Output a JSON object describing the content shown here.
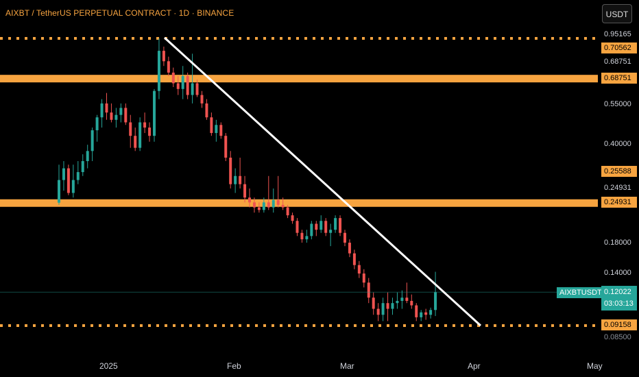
{
  "header": {
    "title": "AIXBT / TetherUS PERPETUAL CONTRACT · 1D · BINANCE",
    "currency_button": "USDT"
  },
  "price_axis": [
    {
      "value": "0.95165",
      "style": "plain"
    },
    {
      "value": "0.70562",
      "style": "orange"
    },
    {
      "value": "0.68751",
      "style": "plain"
    },
    {
      "value": "0.68751",
      "style": "orange"
    },
    {
      "value": "0.55000",
      "style": "plain"
    },
    {
      "value": "0.40000",
      "style": "plain"
    },
    {
      "value": "0.25588",
      "style": "orange"
    },
    {
      "value": "0.24931",
      "style": "plain"
    },
    {
      "value": "0.24931",
      "style": "orange"
    },
    {
      "value": "0.18000",
      "style": "plain"
    },
    {
      "value": "0.14000",
      "style": "plain"
    },
    {
      "value": "0.09158",
      "style": "orange"
    },
    {
      "value": "0.08500",
      "style": "dim"
    }
  ],
  "time_axis": [
    "2025",
    "Feb",
    "Mar",
    "Apr",
    "May"
  ],
  "current": {
    "symbol": "AIXBTUSDT.P",
    "price": "0.12022",
    "countdown": "03:03:13"
  },
  "colors": {
    "background": "#000000",
    "bull": "#26a69a",
    "bear": "#ef5350",
    "level": "#f7a440",
    "trendline": "#ffffff"
  },
  "chart_data": {
    "type": "candlestick",
    "scale": "log",
    "interval": "1D",
    "levels_solid": [
      0.68751,
      0.24931
    ],
    "levels_dotted": [
      0.95165,
      0.09158
    ],
    "trendline": {
      "from_price": 0.95165,
      "to_price": 0.09158
    },
    "candles": [
      [
        0.24931,
        0.245,
        0.34,
        0.3
      ],
      [
        0.3,
        0.275,
        0.35,
        0.33
      ],
      [
        0.33,
        0.265,
        0.34,
        0.27
      ],
      [
        0.27,
        0.26,
        0.34,
        0.3
      ],
      [
        0.3,
        0.29,
        0.35,
        0.32
      ],
      [
        0.32,
        0.31,
        0.37,
        0.35
      ],
      [
        0.35,
        0.33,
        0.4,
        0.38
      ],
      [
        0.38,
        0.35,
        0.46,
        0.45
      ],
      [
        0.45,
        0.41,
        0.51,
        0.5
      ],
      [
        0.5,
        0.46,
        0.58,
        0.56
      ],
      [
        0.56,
        0.49,
        0.61,
        0.52
      ],
      [
        0.52,
        0.48,
        0.56,
        0.49
      ],
      [
        0.49,
        0.46,
        0.54,
        0.51
      ],
      [
        0.51,
        0.48,
        0.56,
        0.54
      ],
      [
        0.54,
        0.47,
        0.56,
        0.48
      ],
      [
        0.48,
        0.39,
        0.51,
        0.43
      ],
      [
        0.43,
        0.38,
        0.46,
        0.39
      ],
      [
        0.39,
        0.38,
        0.5,
        0.48
      ],
      [
        0.48,
        0.44,
        0.52,
        0.46
      ],
      [
        0.46,
        0.41,
        0.48,
        0.43
      ],
      [
        0.43,
        0.41,
        0.63,
        0.62
      ],
      [
        0.62,
        0.58,
        0.95165,
        0.86
      ],
      [
        0.86,
        0.76,
        0.89,
        0.79
      ],
      [
        0.79,
        0.7,
        0.82,
        0.72
      ],
      [
        0.72,
        0.64,
        0.75,
        0.66
      ],
      [
        0.66,
        0.6,
        0.7,
        0.63
      ],
      [
        0.63,
        0.58,
        0.76,
        0.7
      ],
      [
        0.7,
        0.58,
        0.72,
        0.6
      ],
      [
        0.6,
        0.56,
        0.84,
        0.66
      ],
      [
        0.66,
        0.59,
        0.68,
        0.6
      ],
      [
        0.6,
        0.54,
        0.62,
        0.56
      ],
      [
        0.56,
        0.49,
        0.58,
        0.5
      ],
      [
        0.5,
        0.43,
        0.52,
        0.44
      ],
      [
        0.44,
        0.41,
        0.49,
        0.47
      ],
      [
        0.47,
        0.42,
        0.48,
        0.43
      ],
      [
        0.43,
        0.35,
        0.44,
        0.36
      ],
      [
        0.36,
        0.28,
        0.38,
        0.29
      ],
      [
        0.29,
        0.27,
        0.33,
        0.31
      ],
      [
        0.31,
        0.28,
        0.36,
        0.29
      ],
      [
        0.29,
        0.25,
        0.31,
        0.26
      ],
      [
        0.26,
        0.24,
        0.28,
        0.25
      ],
      [
        0.25,
        0.23,
        0.26,
        0.24
      ],
      [
        0.24,
        0.23,
        0.25,
        0.235
      ],
      [
        0.235,
        0.23,
        0.26,
        0.25
      ],
      [
        0.25,
        0.235,
        0.31,
        0.24
      ],
      [
        0.24,
        0.23,
        0.28,
        0.255
      ],
      [
        0.255,
        0.24,
        0.31,
        0.245
      ],
      [
        0.245,
        0.235,
        0.26,
        0.24
      ],
      [
        0.24,
        0.22,
        0.245,
        0.225
      ],
      [
        0.225,
        0.21,
        0.23,
        0.215
      ],
      [
        0.215,
        0.19,
        0.22,
        0.195
      ],
      [
        0.195,
        0.18,
        0.2,
        0.185
      ],
      [
        0.185,
        0.18,
        0.2,
        0.19
      ],
      [
        0.19,
        0.185,
        0.215,
        0.21
      ],
      [
        0.21,
        0.19,
        0.215,
        0.2
      ],
      [
        0.2,
        0.195,
        0.225,
        0.215
      ],
      [
        0.215,
        0.19,
        0.22,
        0.195
      ],
      [
        0.195,
        0.175,
        0.21,
        0.2
      ],
      [
        0.2,
        0.195,
        0.225,
        0.22
      ],
      [
        0.22,
        0.19,
        0.225,
        0.195
      ],
      [
        0.195,
        0.175,
        0.2,
        0.18
      ],
      [
        0.18,
        0.16,
        0.185,
        0.165
      ],
      [
        0.165,
        0.145,
        0.17,
        0.15
      ],
      [
        0.15,
        0.135,
        0.155,
        0.14
      ],
      [
        0.14,
        0.125,
        0.145,
        0.13
      ],
      [
        0.13,
        0.11,
        0.135,
        0.115
      ],
      [
        0.115,
        0.1,
        0.12,
        0.105
      ],
      [
        0.105,
        0.095,
        0.11,
        0.1
      ],
      [
        0.1,
        0.095,
        0.115,
        0.11
      ],
      [
        0.11,
        0.095,
        0.12,
        0.105
      ],
      [
        0.105,
        0.1,
        0.115,
        0.11
      ],
      [
        0.11,
        0.105,
        0.12,
        0.112
      ],
      [
        0.112,
        0.105,
        0.122,
        0.115
      ],
      [
        0.115,
        0.11,
        0.13,
        0.112
      ],
      [
        0.112,
        0.105,
        0.118,
        0.108
      ],
      [
        0.108,
        0.095,
        0.11,
        0.098
      ],
      [
        0.098,
        0.095,
        0.104,
        0.102
      ],
      [
        0.102,
        0.096,
        0.105,
        0.1
      ],
      [
        0.1,
        0.097,
        0.106,
        0.104
      ],
      [
        0.104,
        0.099,
        0.142,
        0.12022
      ]
    ]
  }
}
